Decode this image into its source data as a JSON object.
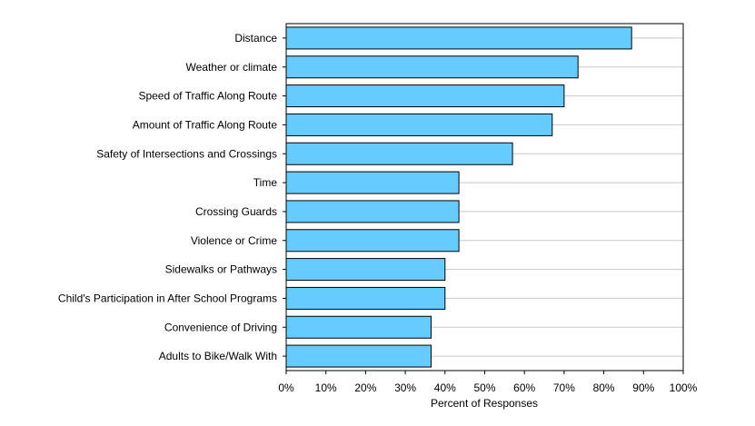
{
  "chart_data": {
    "type": "bar",
    "orientation": "horizontal",
    "title": "",
    "xlabel": "Percent of Responses",
    "ylabel": "",
    "xlim": [
      0,
      100
    ],
    "x_ticks": [
      "0%",
      "10%",
      "20%",
      "30%",
      "40%",
      "50%",
      "60%",
      "70%",
      "80%",
      "90%",
      "100%"
    ],
    "categories": [
      "Distance",
      "Weather or climate",
      "Speed of Traffic Along Route",
      "Amount of Traffic Along Route",
      "Safety of Intersections and Crossings",
      "Time",
      "Crossing Guards",
      "Violence or Crime",
      "Sidewalks or Pathways",
      "Child's Participation in After School Programs",
      "Convenience of Driving",
      "Adults to Bike/Walk With"
    ],
    "values": [
      87,
      73.5,
      70,
      67,
      57,
      43.5,
      43.5,
      43.5,
      40,
      40,
      36.5,
      36.5
    ],
    "bar_color": "#66ccff",
    "grid": true,
    "legend": "none"
  }
}
